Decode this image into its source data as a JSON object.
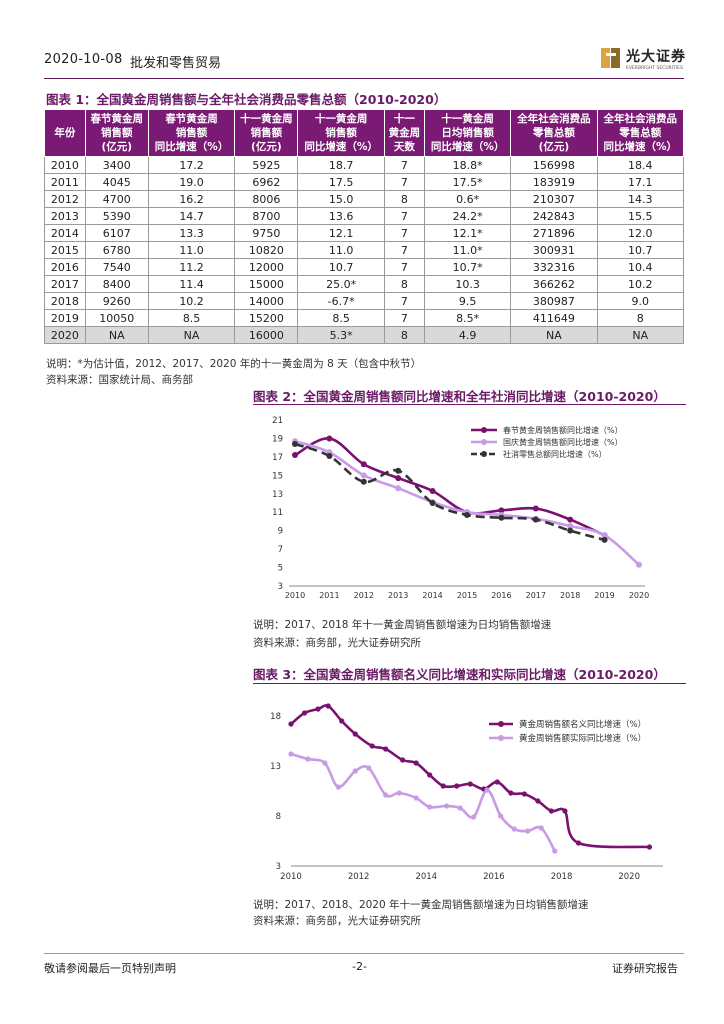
{
  "header": {
    "date": "2020-10-08",
    "sector": "批发和零售贸易",
    "logo_text": "光大证券",
    "logo_sub": "EVERBRIGHT SECURITIES",
    "brand_color": "#6a1a66"
  },
  "table1": {
    "title": "图表 1：全国黄金周销售额与全年社会消费品零售总额（2010-2020）",
    "headers": [
      [
        "年份"
      ],
      [
        "春节黄金周",
        "销售额",
        "(亿元)"
      ],
      [
        "春节黄金周",
        "销售额",
        "同比增速（%）"
      ],
      [
        "十一黄金周",
        "销售额",
        "(亿元)"
      ],
      [
        "十一黄金周",
        "销售额",
        "同比增速（%）"
      ],
      [
        "十一",
        "黄金周",
        "天数"
      ],
      [
        "十一黄金周",
        "日均销售额",
        "同比增速（%）"
      ],
      [
        "全年社会消费品",
        "零售总额",
        "(亿元)"
      ],
      [
        "全年社会消费品",
        "零售总额",
        "同比增速（%）"
      ]
    ],
    "rows": [
      [
        "2010",
        "3400",
        "17.2",
        "5925",
        "18.7",
        "7",
        "18.8*",
        "156998",
        "18.4"
      ],
      [
        "2011",
        "4045",
        "19.0",
        "6962",
        "17.5",
        "7",
        "17.5*",
        "183919",
        "17.1"
      ],
      [
        "2012",
        "4700",
        "16.2",
        "8006",
        "15.0",
        "8",
        "0.6*",
        "210307",
        "14.3"
      ],
      [
        "2013",
        "5390",
        "14.7",
        "8700",
        "13.6",
        "7",
        "24.2*",
        "242843",
        "15.5"
      ],
      [
        "2014",
        "6107",
        "13.3",
        "9750",
        "12.1",
        "7",
        "12.1*",
        "271896",
        "12.0"
      ],
      [
        "2015",
        "6780",
        "11.0",
        "10820",
        "11.0",
        "7",
        "11.0*",
        "300931",
        "10.7"
      ],
      [
        "2016",
        "7540",
        "11.2",
        "12000",
        "10.7",
        "7",
        "10.7*",
        "332316",
        "10.4"
      ],
      [
        "2017",
        "8400",
        "11.4",
        "15000",
        "25.0*",
        "8",
        "10.3",
        "366262",
        "10.2"
      ],
      [
        "2018",
        "9260",
        "10.2",
        "14000",
        "-6.7*",
        "7",
        "9.5",
        "380987",
        "9.0"
      ],
      [
        "2019",
        "10050",
        "8.5",
        "15200",
        "8.5",
        "7",
        "8.5*",
        "411649",
        "8"
      ],
      [
        "2020",
        "NA",
        "NA",
        "16000",
        "5.3*",
        "8",
        "4.9",
        "NA",
        "NA"
      ]
    ],
    "note": "说明：*为估计值，2012、2017、2020 年的十一黄金周为 8 天（包含中秋节）",
    "source": "资料来源：国家统计局、商务部"
  },
  "chart2": {
    "title": "图表 2：全国黄金周销售额同比增速和全年社消同比增速（2010-2020）",
    "note": "说明：2017、2018 年十一黄金周销售额增速为日均销售额增速",
    "source": "资料来源：商务部，光大证券研究所"
  },
  "chart3": {
    "title": "图表 3：全国黄金周销售额名义同比增速和实际同比增速（2010-2020）",
    "note": "说明：2017、2018、2020 年十一黄金周销售额增速为日均销售额增速",
    "source": "资料来源：商务部，光大证券研究所"
  },
  "chart_data": [
    {
      "type": "line",
      "title": "全国黄金周销售额同比增速和全年社消同比增速（2010-2020）",
      "xlabel": "",
      "ylabel": "",
      "ylim": [
        3,
        21
      ],
      "yticks": [
        "3",
        "5",
        "7",
        "9",
        "11",
        "13",
        "15",
        "17",
        "19",
        "21"
      ],
      "x": [
        "2010",
        "2011",
        "2012",
        "2013",
        "2014",
        "2015",
        "2016",
        "2017",
        "2018",
        "2019",
        "2020"
      ],
      "series": [
        {
          "name": "春节黄金周销售额同比增速（%）",
          "color": "#7a1070",
          "dash": false,
          "points": [
            [
              2010,
              17.2
            ],
            [
              2011,
              19.0
            ],
            [
              2012,
              16.2
            ],
            [
              2013,
              14.7
            ],
            [
              2014,
              13.3
            ],
            [
              2015,
              11.0
            ],
            [
              2016,
              11.2
            ],
            [
              2017,
              11.4
            ],
            [
              2018,
              10.2
            ],
            [
              2019,
              8.5
            ]
          ]
        },
        {
          "name": "国庆黄金周销售额同比增速（%）",
          "color": "#c79be6",
          "dash": false,
          "points": [
            [
              2010,
              18.7
            ],
            [
              2011,
              17.5
            ],
            [
              2012,
              15.0
            ],
            [
              2013,
              13.6
            ],
            [
              2014,
              12.1
            ],
            [
              2015,
              11.0
            ],
            [
              2016,
              10.7
            ],
            [
              2017,
              10.3
            ],
            [
              2018,
              9.5
            ],
            [
              2019,
              8.5
            ],
            [
              2020,
              5.3
            ]
          ]
        },
        {
          "name": "社消零售总额同比增速（%）",
          "color": "#333333",
          "dash": true,
          "points": [
            [
              2010,
              18.4
            ],
            [
              2011,
              17.1
            ],
            [
              2012,
              14.3
            ],
            [
              2013,
              15.5
            ],
            [
              2014,
              12.0
            ],
            [
              2015,
              10.7
            ],
            [
              2016,
              10.4
            ],
            [
              2017,
              10.2
            ],
            [
              2018,
              9.0
            ],
            [
              2019,
              8.0
            ]
          ]
        }
      ]
    },
    {
      "type": "line",
      "title": "全国黄金周销售额名义同比增速和实际同比增速（2010-2020）",
      "xlabel": "",
      "ylabel": "",
      "xlim": [
        2010,
        2021
      ],
      "ylim": [
        3,
        18
      ],
      "xticks": [
        "2010",
        "2012",
        "2014",
        "2016",
        "2018",
        "2020"
      ],
      "yticks": [
        "3",
        "8",
        "13",
        "18"
      ],
      "series": [
        {
          "name": "黄金周销售额名义同比增速（%）",
          "color": "#7a1070",
          "points": [
            [
              2010.0,
              17.2
            ],
            [
              2010.4,
              18.3
            ],
            [
              2010.8,
              18.7
            ],
            [
              2011.1,
              19.0
            ],
            [
              2011.5,
              17.5
            ],
            [
              2011.9,
              16.2
            ],
            [
              2012.4,
              15.0
            ],
            [
              2012.8,
              14.7
            ],
            [
              2013.3,
              13.6
            ],
            [
              2013.7,
              13.3
            ],
            [
              2014.1,
              12.1
            ],
            [
              2014.5,
              11.0
            ],
            [
              2014.9,
              11.0
            ],
            [
              2015.3,
              11.2
            ],
            [
              2015.7,
              10.7
            ],
            [
              2016.1,
              11.4
            ],
            [
              2016.5,
              10.3
            ],
            [
              2016.9,
              10.2
            ],
            [
              2017.3,
              9.5
            ],
            [
              2017.7,
              8.5
            ],
            [
              2018.1,
              8.5
            ],
            [
              2018.5,
              5.3
            ],
            [
              2020.6,
              4.9
            ]
          ]
        },
        {
          "name": "黄金周销售额实际同比增速（%）",
          "color": "#c79be6",
          "points": [
            [
              2010.0,
              14.2
            ],
            [
              2010.5,
              13.7
            ],
            [
              2011.0,
              13.3
            ],
            [
              2011.4,
              10.9
            ],
            [
              2011.9,
              12.5
            ],
            [
              2012.3,
              12.8
            ],
            [
              2012.8,
              10.1
            ],
            [
              2013.2,
              10.3
            ],
            [
              2013.7,
              9.8
            ],
            [
              2014.1,
              8.9
            ],
            [
              2014.6,
              9.0
            ],
            [
              2015.0,
              8.8
            ],
            [
              2015.4,
              7.9
            ],
            [
              2015.8,
              10.6
            ],
            [
              2016.2,
              8.0
            ],
            [
              2016.6,
              6.7
            ],
            [
              2017.0,
              6.5
            ],
            [
              2017.4,
              6.8
            ],
            [
              2017.8,
              4.5
            ]
          ]
        }
      ]
    }
  ],
  "footer": {
    "left": "敬请参阅最后一页特别声明",
    "page": "-2-",
    "right": "证券研究报告"
  }
}
